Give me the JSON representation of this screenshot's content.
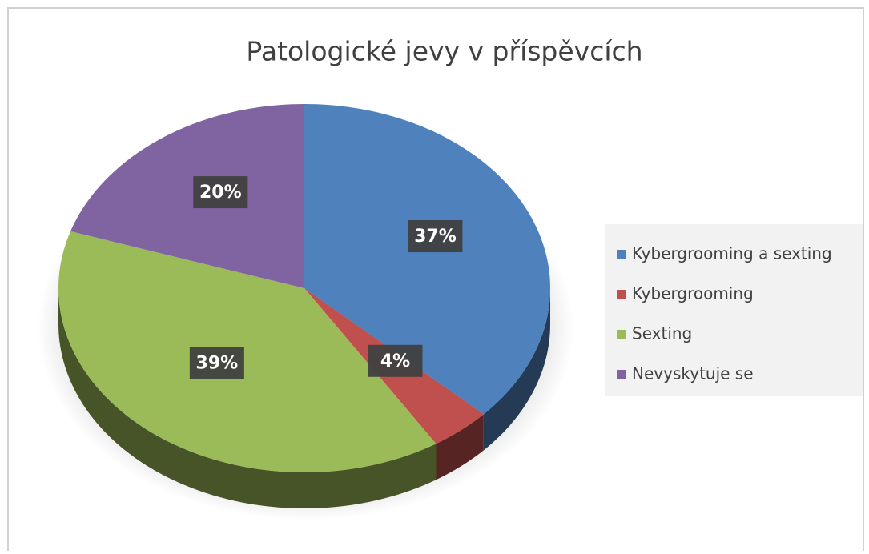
{
  "chart_data": {
    "type": "pie",
    "title": "Patologické jevy v příspěvcích",
    "categories": [
      "Kybergrooming a sexting",
      "Kybergrooming",
      "Sexting",
      "Nevyskytuje se"
    ],
    "values": [
      37,
      4,
      39,
      20
    ],
    "value_labels": [
      "37%",
      "4%",
      "39%",
      "20%"
    ],
    "colors": [
      "#4f81bd",
      "#c0504d",
      "#9bbb59",
      "#8064a2"
    ],
    "legend": "right"
  }
}
